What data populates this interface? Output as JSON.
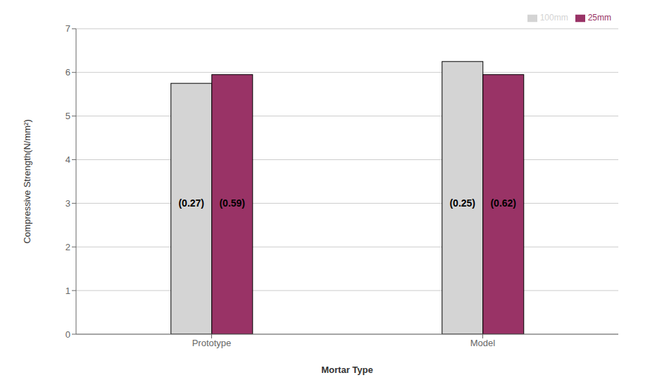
{
  "chart_data": {
    "type": "bar",
    "categories": [
      "Prototype",
      "Model"
    ],
    "series": [
      {
        "name": "100mm",
        "color": "#d4d4d4",
        "values": [
          5.75,
          6.25
        ]
      },
      {
        "name": "25mm",
        "color": "#993366",
        "values": [
          5.95,
          5.95
        ]
      }
    ],
    "annotations": [
      {
        "text": "(0.27)",
        "series": "100mm",
        "category": "Prototype",
        "y": 3.0
      },
      {
        "text": "(0.25)",
        "series": "100mm",
        "category": "Model",
        "y": 3.0
      },
      {
        "text": "(0.59)",
        "series": "25mm",
        "category": "Prototype",
        "y": 3.0
      },
      {
        "text": "(0.62)",
        "series": "25mm",
        "category": "Model",
        "y": 3.0
      }
    ],
    "xlabel": "Mortar Type",
    "ylabel": "Compressive Strength(N/mm²)",
    "ylim": [
      0,
      7
    ],
    "yticks": [
      0,
      1,
      2,
      3,
      4,
      5,
      6,
      7
    ],
    "grid": true,
    "legend": "upper right"
  }
}
